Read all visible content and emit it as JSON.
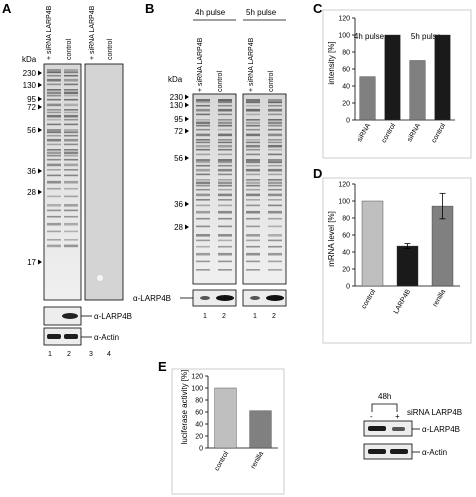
{
  "panel_labels": [
    "A",
    "B",
    "C",
    "D",
    "E"
  ],
  "panel_a": {
    "kda_label": "kDa",
    "markers": [
      "230",
      "130",
      "95",
      "72",
      "56",
      "36",
      "28",
      "17"
    ],
    "lane_headers": [
      "+ siRNA LARP4B",
      "control",
      "+ siRNA LARP4B",
      "control"
    ],
    "blot_labels": [
      "α-LARP4B",
      "α-Actin"
    ],
    "lane_numbers": [
      "1",
      "2",
      "3",
      "4"
    ]
  },
  "panel_b": {
    "pulses": [
      "4h pulse",
      "5h pulse"
    ],
    "kda_label": "kDa",
    "markers": [
      "230",
      "130",
      "95",
      "72",
      "56",
      "36",
      "28"
    ],
    "lane_headers": [
      "+ siRNA LARP4B",
      "control",
      "+ siRNA LARP4B",
      "control"
    ],
    "blot_label": "α-LARP4B",
    "lane_numbers": [
      "1",
      "2",
      "1",
      "2"
    ]
  },
  "chart_data": [
    {
      "panel": "C",
      "type": "bar",
      "ylabel": "intensity [%]",
      "ylim": [
        0,
        120
      ],
      "yticks": [
        0,
        20,
        40,
        60,
        80,
        100,
        120
      ],
      "groups": [
        "4h pulse",
        "5h pulse"
      ],
      "categories": [
        "siRNA",
        "control",
        "siRNA",
        "control"
      ],
      "values": [
        51,
        100,
        70,
        100
      ],
      "colors": [
        "#808080",
        "#1a1a1a",
        "#808080",
        "#1a1a1a"
      ]
    },
    {
      "panel": "D",
      "type": "bar",
      "ylabel": "mRNA level [%]",
      "ylim": [
        0,
        120
      ],
      "yticks": [
        0,
        20,
        40,
        60,
        80,
        100,
        120
      ],
      "categories": [
        "control",
        "LARP4B",
        "renilla"
      ],
      "values": [
        100,
        47,
        94
      ],
      "errors": [
        0,
        3,
        15
      ],
      "colors": [
        "#bfbfbf",
        "#1a1a1a",
        "#808080"
      ]
    },
    {
      "panel": "E",
      "type": "bar",
      "ylabel": "luciferase activity [%]",
      "ylim": [
        0,
        120
      ],
      "yticks": [
        0,
        20,
        40,
        60,
        80,
        100,
        120
      ],
      "categories": [
        "control",
        "renilla"
      ],
      "values": [
        100,
        62
      ],
      "colors": [
        "#bfbfbf",
        "#808080"
      ]
    }
  ],
  "panel_e_blot": {
    "time": "48h",
    "lanes": [
      "-",
      "+"
    ],
    "sirna_label": "siRNA LARP4B",
    "blot_labels": [
      "α-LARP4B",
      "α-Actin"
    ]
  },
  "colors": {
    "axis": "#000000",
    "frame": "#c0c0c0",
    "gel_bg": "#e9e9e9"
  }
}
